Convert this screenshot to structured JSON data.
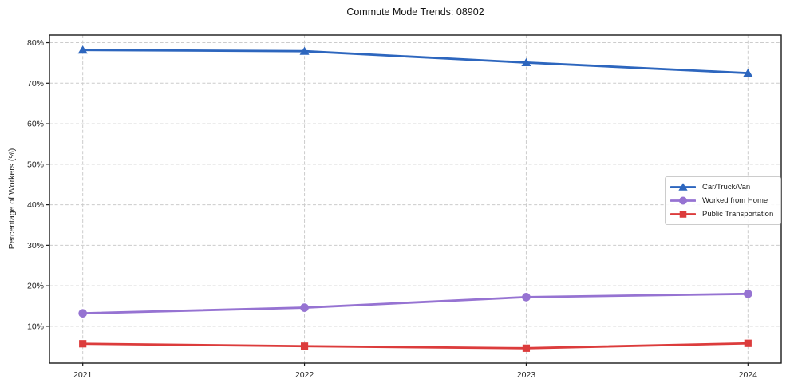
{
  "title": "Commute Mode Trends: 08902",
  "chart_data": {
    "type": "line",
    "title": "Commute Mode Trends: 08902",
    "xlabel": "",
    "ylabel": "Percentage of Workers (%)",
    "categories": [
      2021,
      2022,
      2023,
      2024
    ],
    "series": [
      {
        "name": "Car/Truck/Van",
        "values": [
          78.2,
          77.9,
          75.1,
          72.5
        ],
        "color": "#2d66be",
        "marker": "triangle"
      },
      {
        "name": "Worked from Home",
        "values": [
          13.2,
          14.6,
          17.2,
          18.0
        ],
        "color": "#9673d2",
        "marker": "circle"
      },
      {
        "name": "Public Transportation",
        "values": [
          5.7,
          5.1,
          4.6,
          5.8
        ],
        "color": "#dc3c3c",
        "marker": "square"
      }
    ],
    "yticks": [
      10,
      20,
      30,
      40,
      50,
      60,
      70,
      80
    ],
    "ytick_format": "{v}%",
    "ylim": [
      0.92,
      81.88
    ],
    "xlim": [
      2020.85,
      2024.15
    ],
    "grid": true,
    "grid_style": "dashed",
    "grid_color": "#cccccc",
    "spine_color": "#1a1a1a",
    "legend_position": "center-right"
  }
}
